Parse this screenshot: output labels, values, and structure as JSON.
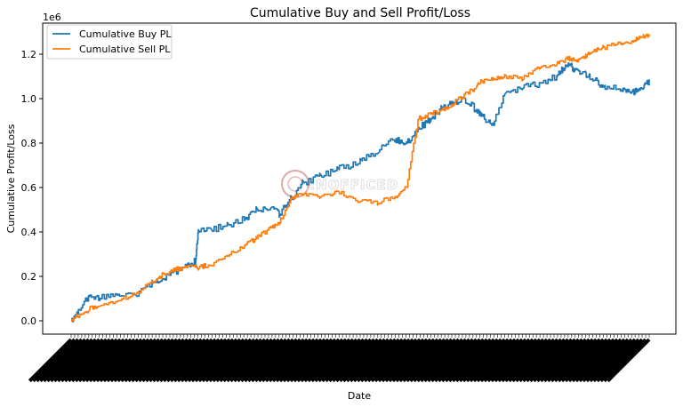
{
  "chart_data": {
    "type": "line",
    "title": "Cumulative Buy and Sell Profit/Loss",
    "xlabel": "Date",
    "ylabel": "Cumulative Profit/Loss",
    "y_offset_label": "1e6",
    "x_tick_labels_legible": false,
    "ylim": [
      -0.06,
      1.34
    ],
    "yticks": [
      "0.0",
      "0.2",
      "0.4",
      "0.6",
      "0.8",
      "1.0",
      "1.2"
    ],
    "grid": false,
    "legend_position": "upper-left",
    "watermark_text": "ENOFFICED",
    "x": [
      0,
      0.01,
      0.03,
      0.05,
      0.08,
      0.11,
      0.14,
      0.16,
      0.18,
      0.2,
      0.215,
      0.22,
      0.24,
      0.27,
      0.3,
      0.32,
      0.345,
      0.36,
      0.38,
      0.4,
      0.43,
      0.46,
      0.5,
      0.53,
      0.56,
      0.58,
      0.6,
      0.62,
      0.64,
      0.66,
      0.68,
      0.7,
      0.71,
      0.73,
      0.75,
      0.78,
      0.81,
      0.84,
      0.85,
      0.86,
      0.87,
      0.89,
      0.9,
      0.92,
      0.95,
      0.97,
      0.98,
      0.99,
      1.0
    ],
    "series": [
      {
        "name": "Cumulative Buy PL",
        "color": "#1f77b4",
        "values": [
          0.0,
          0.03,
          0.11,
          0.1,
          0.12,
          0.11,
          0.17,
          0.19,
          0.22,
          0.25,
          0.27,
          0.4,
          0.41,
          0.43,
          0.46,
          0.5,
          0.51,
          0.48,
          0.55,
          0.62,
          0.65,
          0.68,
          0.72,
          0.76,
          0.82,
          0.8,
          0.87,
          0.9,
          0.96,
          0.98,
          1.0,
          0.95,
          0.92,
          0.88,
          1.03,
          1.05,
          1.07,
          1.1,
          1.13,
          1.16,
          1.13,
          1.11,
          1.09,
          1.06,
          1.04,
          1.03,
          1.04,
          1.05,
          1.08
        ]
      },
      {
        "name": "Cumulative Sell PL",
        "color": "#ff7f0e",
        "values": [
          0.0,
          0.02,
          0.05,
          0.07,
          0.09,
          0.12,
          0.17,
          0.21,
          0.23,
          0.24,
          0.245,
          0.24,
          0.25,
          0.29,
          0.34,
          0.37,
          0.42,
          0.44,
          0.55,
          0.57,
          0.56,
          0.58,
          0.54,
          0.53,
          0.56,
          0.6,
          0.91,
          0.93,
          0.95,
          0.97,
          1.02,
          1.05,
          1.08,
          1.09,
          1.1,
          1.09,
          1.14,
          1.16,
          1.17,
          1.18,
          1.17,
          1.19,
          1.21,
          1.23,
          1.25,
          1.26,
          1.27,
          1.28,
          1.29
        ]
      }
    ]
  }
}
